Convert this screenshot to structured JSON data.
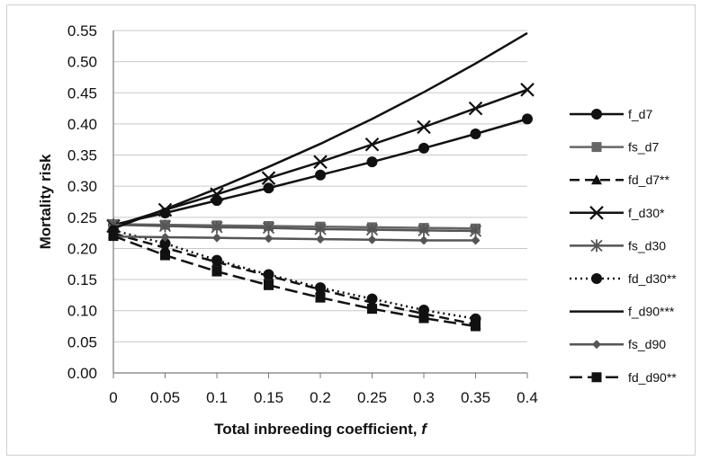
{
  "chart_data": {
    "type": "line",
    "title": "",
    "xlabel": "Total inbreeding coefficient, ",
    "xlabel_italic": "f",
    "ylabel": "Mortality risk",
    "xlim": [
      0,
      0.4
    ],
    "ylim": [
      0,
      0.55
    ],
    "x_ticks": [
      "0",
      "0.05",
      "0.1",
      "0.15",
      "0.2",
      "0.25",
      "0.3",
      "0.35",
      "0.4"
    ],
    "y_ticks": [
      "0.00",
      "0.05",
      "0.10",
      "0.15",
      "0.20",
      "0.25",
      "0.30",
      "0.35",
      "0.40",
      "0.45",
      "0.50",
      "0.55"
    ],
    "grid": "horizontal",
    "legend_position": "right",
    "series": [
      {
        "name": "f_d7",
        "color": "#111111",
        "dash": "solid",
        "marker": "circle",
        "x": [
          0,
          0.05,
          0.1,
          0.15,
          0.2,
          0.25,
          0.3,
          0.35,
          0.4
        ],
        "y": [
          0.238,
          0.257,
          0.277,
          0.297,
          0.318,
          0.339,
          0.361,
          0.384,
          0.408
        ]
      },
      {
        "name": "fs_d7",
        "color": "#666666",
        "dash": "solid",
        "marker": "square",
        "x": [
          0,
          0.05,
          0.1,
          0.15,
          0.2,
          0.25,
          0.3,
          0.35
        ],
        "y": [
          0.239,
          0.238,
          0.237,
          0.236,
          0.235,
          0.234,
          0.233,
          0.232
        ]
      },
      {
        "name": "fd_d7**",
        "color": "#111111",
        "dash": "dashed",
        "marker": "triangle",
        "x": [
          0,
          0.05,
          0.1,
          0.15,
          0.2,
          0.25,
          0.3,
          0.35
        ],
        "y": [
          0.224,
          0.201,
          0.178,
          0.156,
          0.134,
          0.113,
          0.095,
          0.078
        ]
      },
      {
        "name": "f_d30*",
        "color": "#111111",
        "dash": "solid",
        "marker": "x",
        "x": [
          0,
          0.05,
          0.1,
          0.15,
          0.2,
          0.25,
          0.3,
          0.35,
          0.4
        ],
        "y": [
          0.236,
          0.262,
          0.287,
          0.313,
          0.339,
          0.367,
          0.395,
          0.425,
          0.455
        ]
      },
      {
        "name": "fs_d30",
        "color": "#555555",
        "dash": "solid",
        "marker": "star",
        "x": [
          0,
          0.05,
          0.1,
          0.15,
          0.2,
          0.25,
          0.3,
          0.35
        ],
        "y": [
          0.238,
          0.236,
          0.234,
          0.233,
          0.231,
          0.23,
          0.229,
          0.228
        ]
      },
      {
        "name": "fd_d30**",
        "color": "#111111",
        "dash": "dotted",
        "marker": "circle",
        "x": [
          0,
          0.05,
          0.1,
          0.15,
          0.2,
          0.25,
          0.3,
          0.35
        ],
        "y": [
          0.229,
          0.208,
          0.181,
          0.158,
          0.137,
          0.119,
          0.101,
          0.087
        ]
      },
      {
        "name": "f_d90***",
        "color": "#111111",
        "dash": "solid",
        "marker": "none",
        "x": [
          0,
          0.05,
          0.1,
          0.15,
          0.2,
          0.25,
          0.3,
          0.35,
          0.4
        ],
        "y": [
          0.232,
          0.263,
          0.296,
          0.331,
          0.368,
          0.408,
          0.451,
          0.497,
          0.546
        ]
      },
      {
        "name": "fs_d90",
        "color": "#555555",
        "dash": "solid",
        "marker": "diamond",
        "x": [
          0,
          0.05,
          0.1,
          0.15,
          0.2,
          0.25,
          0.3,
          0.35
        ],
        "y": [
          0.219,
          0.218,
          0.217,
          0.216,
          0.215,
          0.214,
          0.213,
          0.213
        ]
      },
      {
        "name": "fd_d90**",
        "color": "#111111",
        "dash": "longdash",
        "marker": "square",
        "x": [
          0,
          0.05,
          0.1,
          0.15,
          0.2,
          0.25,
          0.3,
          0.35
        ],
        "y": [
          0.22,
          0.189,
          0.163,
          0.141,
          0.121,
          0.103,
          0.088,
          0.075
        ]
      }
    ]
  }
}
